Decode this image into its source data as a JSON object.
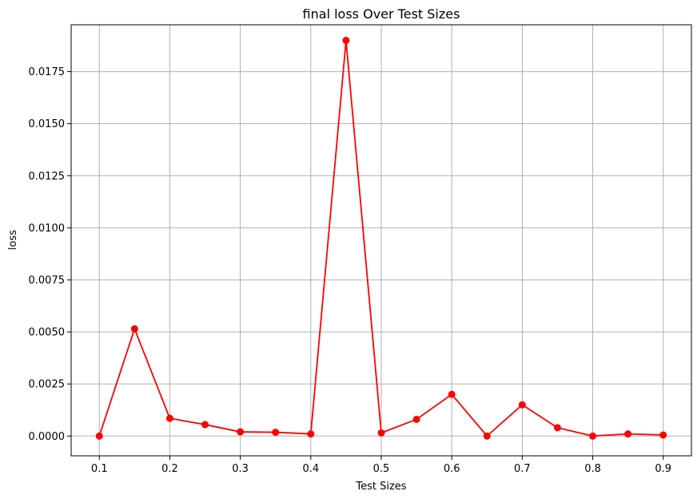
{
  "chart_data": {
    "type": "line",
    "title": "final loss Over Test Sizes",
    "xlabel": "Test Sizes",
    "ylabel": "loss",
    "xlim": [
      0.06,
      0.94
    ],
    "ylim": [
      -0.00095,
      0.01975
    ],
    "xticks": [
      0.1,
      0.2,
      0.3,
      0.4,
      0.5,
      0.6,
      0.7,
      0.8,
      0.9
    ],
    "xtick_labels": [
      "0.1",
      "0.2",
      "0.3",
      "0.4",
      "0.5",
      "0.6",
      "0.7",
      "0.8",
      "0.9"
    ],
    "yticks": [
      0.0,
      0.0025,
      0.005,
      0.0075,
      0.01,
      0.0125,
      0.015,
      0.0175
    ],
    "ytick_labels": [
      "0.0000",
      "0.0025",
      "0.0050",
      "0.0075",
      "0.0100",
      "0.0125",
      "0.0150",
      "0.0175"
    ],
    "grid": true,
    "series": [
      {
        "color": "#ff0000",
        "marker": "circle",
        "x": [
          0.1,
          0.15,
          0.2,
          0.25,
          0.3,
          0.35,
          0.4,
          0.45,
          0.5,
          0.55,
          0.6,
          0.65,
          0.7,
          0.75,
          0.8,
          0.85,
          0.9
        ],
        "y": [
          0.0,
          0.00515,
          0.00085,
          0.00055,
          0.0002,
          0.00018,
          0.0001,
          0.019,
          0.00015,
          0.0008,
          0.002,
          0.0,
          0.0015,
          0.0004,
          0.0,
          0.0001,
          5e-05
        ]
      }
    ]
  }
}
